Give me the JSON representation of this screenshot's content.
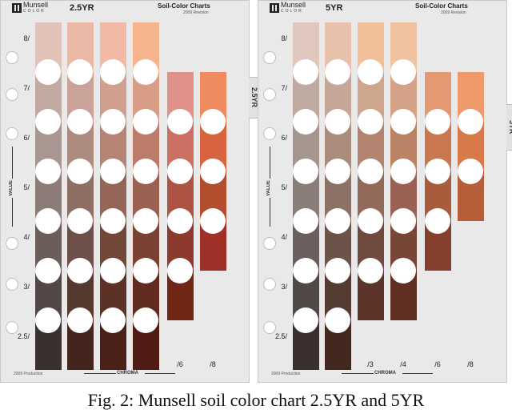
{
  "caption": "Fig. 2: Munsell soil color chart 2.5YR and 5YR",
  "charts": [
    {
      "brand": "Munsell",
      "brand_sub": "COLOR",
      "hue": "2.5YR",
      "series_title": "Soil-Color Charts",
      "revision": "2009 Revision",
      "tab_label": "2.5YR",
      "value_axis": "VALUE",
      "chroma_axis": "CHROMA",
      "production": "2009 Production",
      "value_labels": [
        "8/",
        "7/",
        "6/",
        "5/",
        "4/",
        "3/",
        "2.5/"
      ],
      "chroma_labels": [
        "/1",
        "/2",
        "/3",
        "/4",
        "/6",
        "/8"
      ],
      "chips": [
        [
          "#e1c2b8",
          "#e9b9a5",
          "#f2b9a4",
          "#f6b48c",
          null,
          null
        ],
        [
          "#c2aaa3",
          "#c9a397",
          "#d19f8f",
          "#d89d86",
          "#e0928a",
          "#ef8b5e"
        ],
        [
          "#a89690",
          "#ae8b7f",
          "#b68475",
          "#bb7c69",
          "#cc7064",
          "#d7643e"
        ],
        [
          "#8b7c78",
          "#8e6f66",
          "#956657",
          "#9b6150",
          "#ad5343",
          "#b24d2d"
        ],
        [
          "#6b5d5a",
          "#6c5049",
          "#744839",
          "#7a4232",
          "#8c3a2e",
          "#9e3028"
        ],
        [
          "#524745",
          "#55392f",
          "#5c3226",
          "#612b1f",
          "#6f2614",
          null
        ],
        [
          "#3a302f",
          "#44251d",
          "#4a2018",
          "#4f1b12",
          null,
          null
        ]
      ]
    },
    {
      "brand": "Munsell",
      "brand_sub": "COLOR",
      "hue": "5YR",
      "series_title": "Soil-Color Charts",
      "revision": "2009 Revision",
      "tab_label": "5YR",
      "value_axis": "VALUE",
      "chroma_axis": "CHROMA",
      "production": "2009 Production",
      "value_labels": [
        "8/",
        "7/",
        "6/",
        "5/",
        "4/",
        "3/",
        "2.5/"
      ],
      "chroma_labels": [
        "/1",
        "/2",
        "/3",
        "/4",
        "/6",
        "/8"
      ],
      "chips": [
        [
          "#e0c7bd",
          "#e8c0ac",
          "#f1bf9a",
          "#f0c29f",
          null,
          null
        ],
        [
          "#bfaaa2",
          "#c5a697",
          "#cea68d",
          "#d4a287",
          "#e39971",
          "#ee9a6a"
        ],
        [
          "#a4958e",
          "#aa8c7d",
          "#b28470",
          "#ba8366",
          "#c8774e",
          "#d67a4a"
        ],
        [
          "#8a7d78",
          "#8c7166",
          "#93695a",
          "#996254",
          "#a85c3b",
          "#b55e39"
        ],
        [
          "#6a5f5c",
          "#6b534a",
          "#704a3c",
          "#774636",
          "#84402c",
          null
        ],
        [
          "#514845",
          "#553c33",
          "#5c3429",
          "#5f2f22",
          null,
          null
        ],
        [
          "#3b302d",
          "#43281f",
          null,
          null,
          null,
          null
        ]
      ]
    }
  ]
}
